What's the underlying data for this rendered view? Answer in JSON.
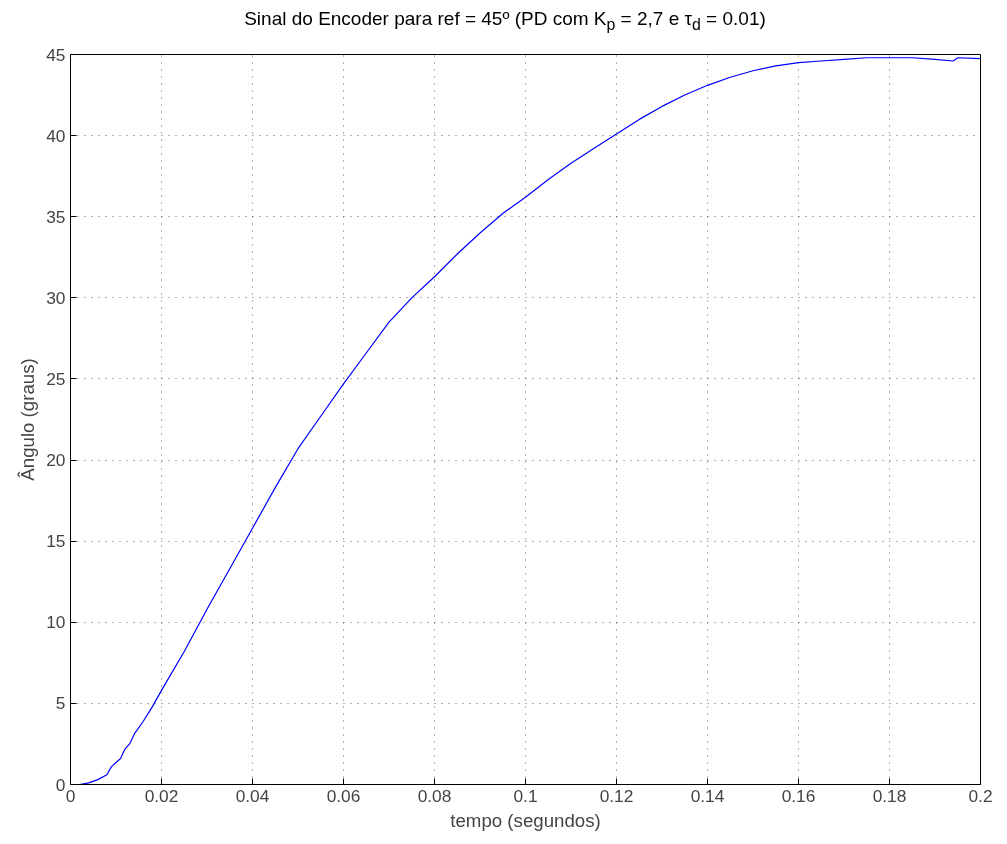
{
  "chart_data": {
    "type": "line",
    "title": "Sinal do Encoder para ref = 45º (PD com K$_{p}$ = 2,7 e τ$_{d}$ = 0.01)",
    "xlabel": "tempo (segundos)",
    "ylabel": "Ângulo (graus)",
    "series": [
      {
        "color": "#0000ff",
        "x": [
          0,
          0.002,
          0.004,
          0.006,
          0.008,
          0.009,
          0.011,
          0.012,
          0.013,
          0.014,
          0.016,
          0.018,
          0.02,
          0.025,
          0.03,
          0.035,
          0.04,
          0.045,
          0.05,
          0.055,
          0.06,
          0.065,
          0.07,
          0.075,
          0.08,
          0.085,
          0.09,
          0.095,
          0.1,
          0.105,
          0.11,
          0.115,
          0.12,
          0.125,
          0.13,
          0.135,
          0.14,
          0.145,
          0.15,
          0.155,
          0.16,
          0.165,
          0.17,
          0.175,
          0.18,
          0.185,
          0.19,
          0.194,
          0.195,
          0.2
        ],
        "values": [
          0,
          0,
          0.1,
          0.3,
          0.6,
          1.1,
          1.6,
          2.2,
          2.5,
          3.1,
          3.9,
          4.8,
          5.8,
          8.2,
          10.8,
          13.3,
          15.8,
          18.3,
          20.7,
          22.7,
          24.7,
          26.6,
          28.5,
          30.0,
          31.3,
          32.7,
          34.0,
          35.2,
          36.2,
          37.3,
          38.3,
          39.2,
          40.1,
          41.0,
          41.8,
          42.5,
          43.1,
          43.6,
          44.0,
          44.3,
          44.5,
          44.6,
          44.7,
          44.8,
          44.8,
          44.8,
          44.7,
          44.6,
          44.8,
          44.75
        ]
      }
    ],
    "xlim": [
      0,
      0.2
    ],
    "ylim": [
      0,
      45
    ],
    "xticks": [
      0,
      0.02,
      0.04,
      0.06,
      0.08,
      0.1,
      0.12,
      0.14,
      0.16,
      0.18,
      0.2
    ],
    "yticks": [
      0,
      5,
      10,
      15,
      20,
      25,
      30,
      35,
      40,
      45
    ],
    "grid": true,
    "line_style": "solid"
  }
}
